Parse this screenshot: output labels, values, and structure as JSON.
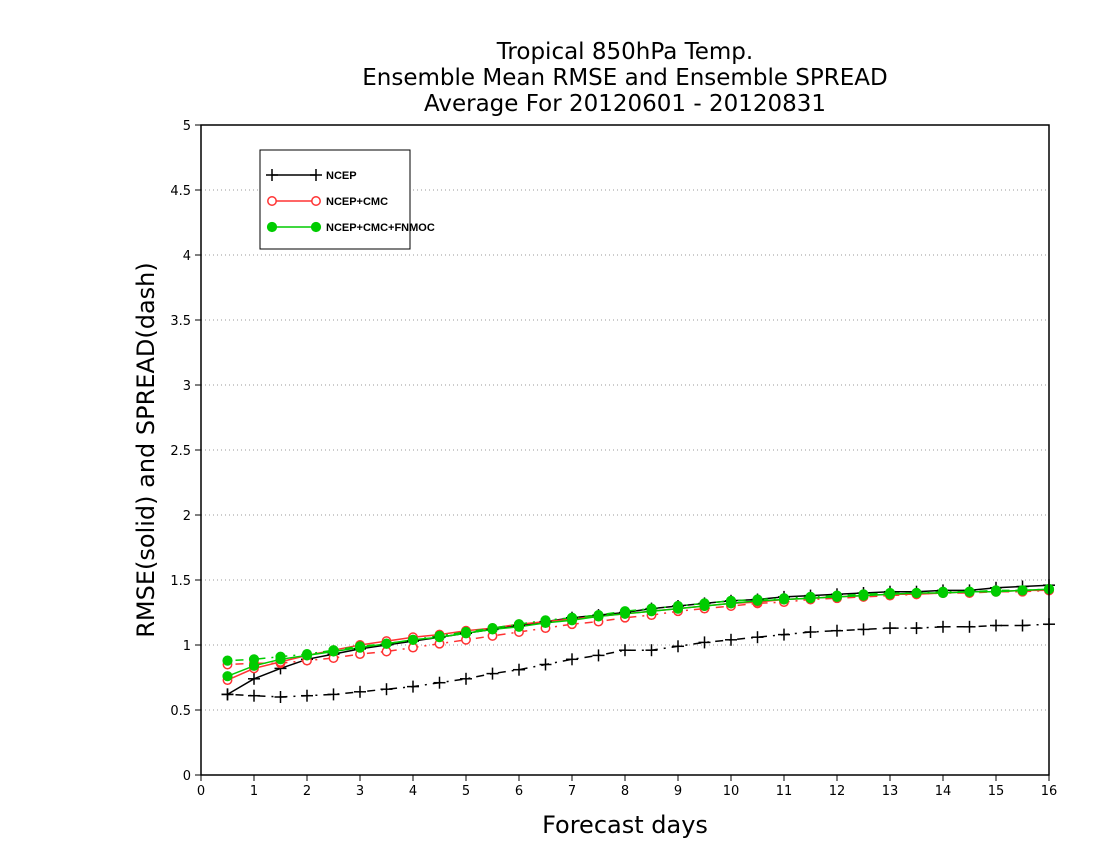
{
  "chart_data": {
    "type": "line",
    "title_lines": [
      "Tropical 850hPa Temp.",
      "Ensemble Mean RMSE and Ensemble SPREAD",
      "Average For 20120601 - 20120831"
    ],
    "xlabel": "Forecast days",
    "ylabel": "RMSE(solid) and SPREAD(dash)",
    "xlim": [
      0,
      16
    ],
    "ylim": [
      0,
      5
    ],
    "x_ticks": [
      "0",
      "1",
      "2",
      "3",
      "4",
      "5",
      "6",
      "7",
      "8",
      "9",
      "10",
      "11",
      "12",
      "13",
      "14",
      "15",
      "16"
    ],
    "y_ticks": [
      "0",
      "0.5",
      "1",
      "1.5",
      "2",
      "2.5",
      "3",
      "3.5",
      "4",
      "4.5",
      "5"
    ],
    "grid": "horizontal dotted",
    "legend_position": "top-left",
    "x": [
      0.5,
      1,
      1.5,
      2,
      2.5,
      3,
      3.5,
      4,
      4.5,
      5,
      5.5,
      6,
      6.5,
      7,
      7.5,
      8,
      8.5,
      9,
      9.5,
      10,
      10.5,
      11,
      11.5,
      12,
      12.5,
      13,
      13.5,
      14,
      14.5,
      15,
      15.5,
      16
    ],
    "series": [
      {
        "name": "NCEP",
        "color": "#000000",
        "marker": "plus",
        "rmse": [
          0.62,
          0.74,
          0.82,
          0.89,
          0.93,
          0.97,
          1.0,
          1.03,
          1.06,
          1.09,
          1.12,
          1.15,
          1.18,
          1.21,
          1.23,
          1.25,
          1.28,
          1.3,
          1.32,
          1.34,
          1.35,
          1.37,
          1.38,
          1.39,
          1.4,
          1.41,
          1.41,
          1.42,
          1.42,
          1.44,
          1.45,
          1.46
        ],
        "spread": [
          0.62,
          0.61,
          0.6,
          0.61,
          0.62,
          0.64,
          0.66,
          0.68,
          0.71,
          0.74,
          0.78,
          0.81,
          0.85,
          0.89,
          0.92,
          0.96,
          0.96,
          0.99,
          1.02,
          1.04,
          1.06,
          1.08,
          1.1,
          1.11,
          1.12,
          1.13,
          1.13,
          1.14,
          1.14,
          1.15,
          1.15,
          1.16
        ]
      },
      {
        "name": "NCEP+CMC",
        "color": "#ff3333",
        "marker": "open-circle",
        "rmse": [
          0.73,
          0.82,
          0.87,
          0.92,
          0.96,
          1.0,
          1.03,
          1.06,
          1.08,
          1.11,
          1.13,
          1.16,
          1.18,
          1.2,
          1.22,
          1.24,
          1.26,
          1.28,
          1.3,
          1.32,
          1.33,
          1.35,
          1.36,
          1.37,
          1.38,
          1.39,
          1.39,
          1.4,
          1.41,
          1.41,
          1.42,
          1.42
        ],
        "spread": [
          0.85,
          0.86,
          0.86,
          0.88,
          0.9,
          0.93,
          0.95,
          0.98,
          1.01,
          1.04,
          1.07,
          1.1,
          1.13,
          1.16,
          1.18,
          1.21,
          1.23,
          1.26,
          1.28,
          1.3,
          1.32,
          1.33,
          1.35,
          1.36,
          1.37,
          1.38,
          1.39,
          1.4,
          1.4,
          1.41,
          1.41,
          1.42
        ]
      },
      {
        "name": "NCEP+CMC+FNMOC",
        "color": "#00cc00",
        "marker": "filled-circle",
        "rmse": [
          0.76,
          0.84,
          0.89,
          0.92,
          0.95,
          0.98,
          1.01,
          1.04,
          1.06,
          1.09,
          1.12,
          1.14,
          1.17,
          1.19,
          1.22,
          1.24,
          1.26,
          1.28,
          1.3,
          1.32,
          1.34,
          1.35,
          1.36,
          1.37,
          1.38,
          1.39,
          1.4,
          1.4,
          1.41,
          1.41,
          1.42,
          1.43
        ],
        "spread": [
          0.88,
          0.89,
          0.91,
          0.93,
          0.96,
          0.99,
          1.01,
          1.04,
          1.07,
          1.1,
          1.13,
          1.16,
          1.19,
          1.21,
          1.23,
          1.26,
          1.28,
          1.3,
          1.32,
          1.34,
          1.35,
          1.36,
          1.37,
          1.38,
          1.39,
          1.4,
          1.4,
          1.41,
          1.41,
          1.42,
          1.42,
          1.43
        ]
      }
    ]
  }
}
